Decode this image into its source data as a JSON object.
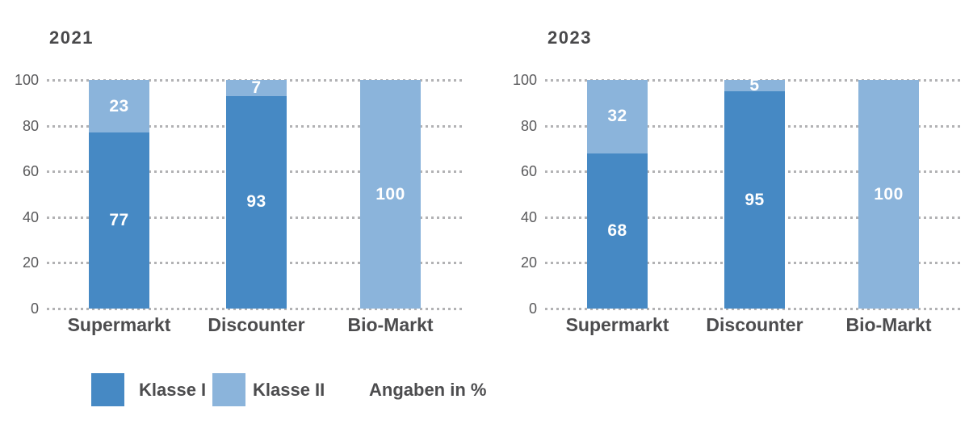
{
  "chart_data": [
    {
      "type": "bar",
      "stacked": true,
      "title": "2021",
      "categories": [
        "Supermarkt",
        "Discounter",
        "Bio-Markt"
      ],
      "series": [
        {
          "name": "Klasse I",
          "values": [
            77,
            93,
            0
          ]
        },
        {
          "name": "Klasse II",
          "values": [
            23,
            7,
            100
          ]
        }
      ],
      "value_labels_shown": true,
      "ylim": [
        0,
        100
      ],
      "yticks": [
        0,
        20,
        40,
        60,
        80,
        100
      ],
      "grid": "horizontal-dotted",
      "xlabel": "",
      "ylabel": ""
    },
    {
      "type": "bar",
      "stacked": true,
      "title": "2023",
      "categories": [
        "Supermarkt",
        "Discounter",
        "Bio-Markt"
      ],
      "series": [
        {
          "name": "Klasse I",
          "values": [
            68,
            95,
            0
          ]
        },
        {
          "name": "Klasse II",
          "values": [
            32,
            5,
            100
          ]
        }
      ],
      "value_labels_shown": true,
      "ylim": [
        0,
        100
      ],
      "yticks": [
        0,
        20,
        40,
        60,
        80,
        100
      ],
      "grid": "horizontal-dotted",
      "xlabel": "",
      "ylabel": ""
    }
  ],
  "legend": {
    "items": [
      {
        "label": "Klasse I",
        "color": "#4689c4"
      },
      {
        "label": "Klasse II",
        "color": "#8bb4db"
      }
    ],
    "note": "Angaben in %"
  },
  "colors": {
    "series_klasse_1": "#4689c4",
    "series_klasse_2": "#8bb4db",
    "gridline": "#b2b2b4",
    "axis_text": "#59595b",
    "label_text": "#4c4c4e",
    "value_label_text": "#ffffff",
    "background": "#ffffff"
  }
}
